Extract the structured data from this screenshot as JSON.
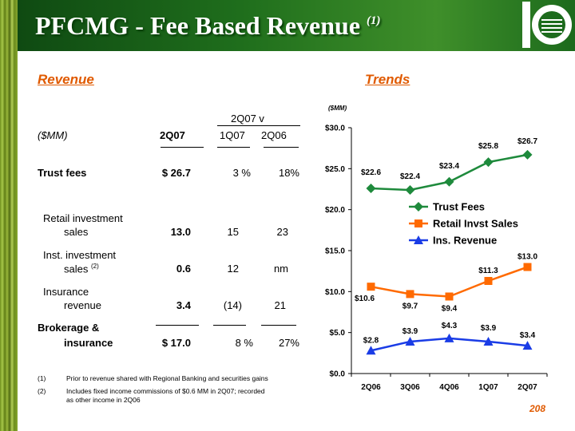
{
  "header": {
    "title": "PFCMG - Fee Based Revenue",
    "title_note": "(1)"
  },
  "left": {
    "heading": "Revenue",
    "group_header": "2Q07 v",
    "col_unit": "($MM)",
    "col_2q07": "2Q07",
    "col_1q07": "1Q07",
    "col_2q06": "2Q06",
    "rows": [
      {
        "label": "Trust fees",
        "v2q07": "$ 26.7",
        "v1q07": "3 %",
        "v2q06": "18%"
      },
      {
        "label_l1": "Retail investment",
        "label_l2": "sales",
        "v2q07": "13.0",
        "v1q07": "15",
        "v2q06": "23"
      },
      {
        "label_l1": "Inst. investment",
        "label_l2": "sales",
        "label_note": "(2)",
        "v2q07": "0.6",
        "v1q07": "12",
        "v2q06": "nm"
      },
      {
        "label_l1": "Insurance",
        "label_l2": "revenue",
        "v2q07": "3.4",
        "v1q07": "(14)",
        "v2q06": "21"
      },
      {
        "label_l1": "Brokerage &",
        "label_l2": "insurance",
        "v2q07": "$ 17.0",
        "v1q07": "8 %",
        "v2q06": "27%"
      }
    ]
  },
  "footnotes": [
    {
      "num": "(1)",
      "text": "Prior to revenue shared with Regional Banking and securities gains"
    },
    {
      "num": "(2)",
      "text_l1": "Includes fixed income commissions of $0.6 MM in 2Q07; recorded",
      "text_l2": "as other income in 2Q06"
    }
  ],
  "right": {
    "heading": "Trends"
  },
  "page_number": "208",
  "colors": {
    "title_text": "#ffffff",
    "section_heading": "#e05a00",
    "header_green": "#1f6e1c"
  },
  "chart_data": {
    "type": "line",
    "unit_label": "($MM)",
    "categories": [
      "2Q06",
      "3Q06",
      "4Q06",
      "1Q07",
      "2Q07"
    ],
    "ylim": [
      0,
      30
    ],
    "yticks": [
      "$0.0",
      "$5.0",
      "$10.0",
      "$15.0",
      "$20.0",
      "$25.0",
      "$30.0"
    ],
    "grid": false,
    "legend_position": "center-right",
    "series": [
      {
        "name": "Trust Fees",
        "color": "#1e8a3c",
        "marker": "diamond",
        "values": [
          22.6,
          22.4,
          23.4,
          25.8,
          26.7
        ],
        "labels": [
          "$22.6",
          "$22.4",
          "$23.4",
          "$25.8",
          "$26.7"
        ]
      },
      {
        "name": "Retail Invst Sales",
        "color": "#ff6a00",
        "marker": "square",
        "values": [
          10.6,
          9.7,
          9.4,
          11.3,
          13.0
        ],
        "labels": [
          "$10.6",
          "$9.7",
          "$9.4",
          "$11.3",
          "$13.0"
        ]
      },
      {
        "name": "Ins. Revenue",
        "color": "#1a3ce6",
        "marker": "triangle",
        "values": [
          2.8,
          3.9,
          4.3,
          3.9,
          3.4
        ],
        "labels": [
          "$2.8",
          "$3.9",
          "$4.3",
          "$3.9",
          "$3.4"
        ]
      }
    ]
  }
}
